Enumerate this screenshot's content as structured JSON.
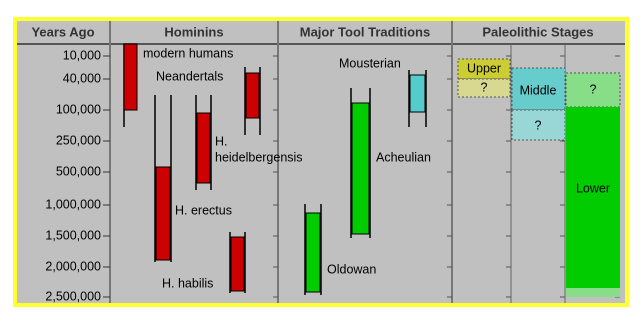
{
  "header": {
    "columns": [
      "Years Ago",
      "Hominins",
      "Major Tool Traditions",
      "Paleolithic Stages"
    ]
  },
  "years_axis": [
    "10,000",
    "40,000",
    "100,000",
    "250,000",
    "500,000",
    "1,000,000",
    "1,500,000",
    "2,000,000",
    "2,500,000"
  ],
  "hominins": [
    "modern humans",
    "Neandertals",
    "H.",
    "heidelbergensis",
    "H. erectus",
    "H. habilis"
  ],
  "tools": [
    "Mousterian",
    "Acheulian",
    "Oldowan"
  ],
  "stages": {
    "upper": "Upper",
    "upper_unknown": "?",
    "middle": "Middle",
    "middle_unknown": "?",
    "lower_unknown": "?",
    "lower": "Lower"
  }
}
